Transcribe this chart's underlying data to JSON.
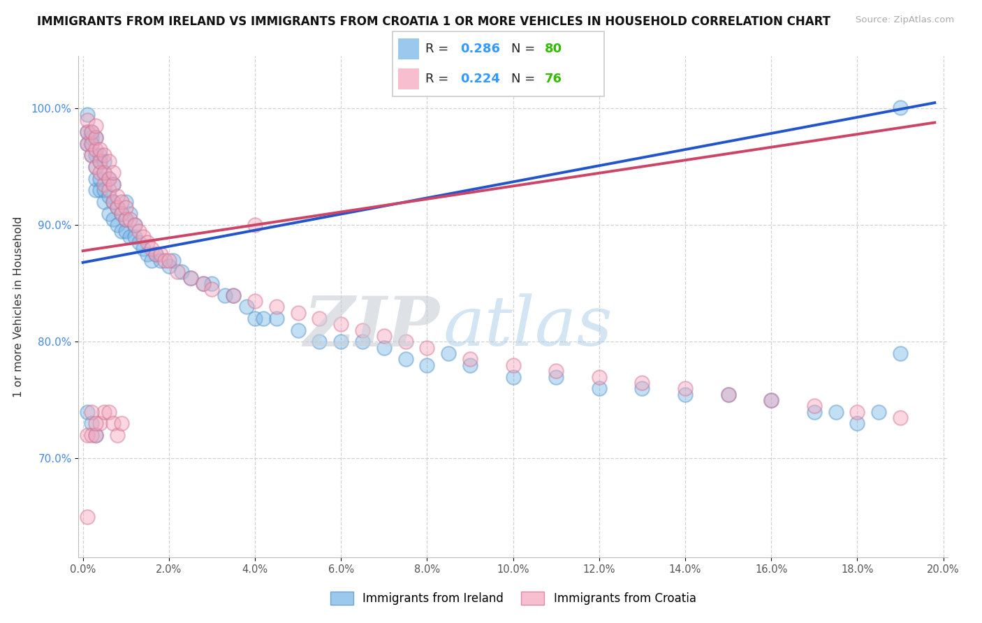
{
  "title": "IMMIGRANTS FROM IRELAND VS IMMIGRANTS FROM CROATIA 1 OR MORE VEHICLES IN HOUSEHOLD CORRELATION CHART",
  "source": "Source: ZipAtlas.com",
  "ylabel": "1 or more Vehicles in Household",
  "xlim": [
    -0.001,
    0.201
  ],
  "ylim": [
    0.615,
    1.045
  ],
  "xticks": [
    0.0,
    0.02,
    0.04,
    0.06,
    0.08,
    0.1,
    0.12,
    0.14,
    0.16,
    0.18,
    0.2
  ],
  "xticklabels": [
    "0.0%",
    "2.0%",
    "4.0%",
    "6.0%",
    "8.0%",
    "10.0%",
    "12.0%",
    "14.0%",
    "16.0%",
    "18.0%",
    "20.0%"
  ],
  "yticks": [
    0.7,
    0.8,
    0.9,
    1.0
  ],
  "yticklabels": [
    "70.0%",
    "80.0%",
    "90.0%",
    "100.0%"
  ],
  "ireland_color": "#7ab8e8",
  "ireland_edge": "#5090c8",
  "croatia_color": "#f4a8be",
  "croatia_edge": "#d07090",
  "ireland_R": 0.286,
  "ireland_N": 80,
  "croatia_R": 0.224,
  "croatia_N": 76,
  "ireland_line_color": "#2255cc",
  "croatia_line_color": "#cc4466",
  "ireland_line_x": [
    0.0,
    0.198
  ],
  "ireland_line_y": [
    0.868,
    1.005
  ],
  "croatia_line_x": [
    0.0,
    0.198
  ],
  "croatia_line_y": [
    0.878,
    0.988
  ],
  "watermark_zip": "ZIP",
  "watermark_atlas": "atlas",
  "legend_R_color": "#3399ff",
  "legend_N_color": "#33bb00",
  "background_color": "#ffffff",
  "grid_color": "#cccccc",
  "ireland_x": [
    0.001,
    0.001,
    0.001,
    0.002,
    0.002,
    0.002,
    0.002,
    0.003,
    0.003,
    0.003,
    0.003,
    0.003,
    0.004,
    0.004,
    0.004,
    0.004,
    0.005,
    0.005,
    0.005,
    0.005,
    0.006,
    0.006,
    0.006,
    0.007,
    0.007,
    0.007,
    0.008,
    0.008,
    0.009,
    0.009,
    0.01,
    0.01,
    0.01,
    0.011,
    0.011,
    0.012,
    0.012,
    0.013,
    0.014,
    0.015,
    0.016,
    0.017,
    0.018,
    0.02,
    0.021,
    0.023,
    0.025,
    0.028,
    0.03,
    0.033,
    0.035,
    0.038,
    0.04,
    0.042,
    0.045,
    0.05,
    0.055,
    0.06,
    0.065,
    0.07,
    0.075,
    0.08,
    0.085,
    0.09,
    0.1,
    0.11,
    0.12,
    0.13,
    0.14,
    0.15,
    0.16,
    0.17,
    0.175,
    0.18,
    0.185,
    0.19,
    0.001,
    0.002,
    0.003,
    0.19
  ],
  "ireland_y": [
    0.97,
    0.98,
    0.995,
    0.96,
    0.97,
    0.975,
    0.98,
    0.93,
    0.94,
    0.95,
    0.96,
    0.975,
    0.93,
    0.94,
    0.955,
    0.96,
    0.92,
    0.93,
    0.945,
    0.955,
    0.91,
    0.925,
    0.94,
    0.905,
    0.92,
    0.935,
    0.9,
    0.915,
    0.895,
    0.91,
    0.895,
    0.905,
    0.92,
    0.89,
    0.91,
    0.89,
    0.9,
    0.885,
    0.88,
    0.875,
    0.87,
    0.875,
    0.87,
    0.865,
    0.87,
    0.86,
    0.855,
    0.85,
    0.85,
    0.84,
    0.84,
    0.83,
    0.82,
    0.82,
    0.82,
    0.81,
    0.8,
    0.8,
    0.8,
    0.795,
    0.785,
    0.78,
    0.79,
    0.78,
    0.77,
    0.77,
    0.76,
    0.76,
    0.755,
    0.755,
    0.75,
    0.74,
    0.74,
    0.73,
    0.74,
    1.001,
    0.74,
    0.73,
    0.72,
    0.79
  ],
  "croatia_x": [
    0.001,
    0.001,
    0.001,
    0.002,
    0.002,
    0.002,
    0.003,
    0.003,
    0.003,
    0.003,
    0.004,
    0.004,
    0.004,
    0.005,
    0.005,
    0.005,
    0.006,
    0.006,
    0.006,
    0.007,
    0.007,
    0.007,
    0.008,
    0.008,
    0.009,
    0.009,
    0.01,
    0.01,
    0.011,
    0.012,
    0.013,
    0.014,
    0.015,
    0.016,
    0.017,
    0.018,
    0.019,
    0.02,
    0.022,
    0.025,
    0.028,
    0.03,
    0.035,
    0.04,
    0.045,
    0.05,
    0.055,
    0.06,
    0.065,
    0.07,
    0.075,
    0.08,
    0.09,
    0.1,
    0.11,
    0.12,
    0.13,
    0.14,
    0.15,
    0.16,
    0.17,
    0.18,
    0.19,
    0.001,
    0.002,
    0.003,
    0.004,
    0.005,
    0.006,
    0.007,
    0.008,
    0.009,
    0.001,
    0.002,
    0.003,
    0.04
  ],
  "croatia_y": [
    0.97,
    0.98,
    0.99,
    0.96,
    0.97,
    0.98,
    0.95,
    0.965,
    0.975,
    0.985,
    0.945,
    0.955,
    0.965,
    0.935,
    0.945,
    0.96,
    0.93,
    0.94,
    0.955,
    0.92,
    0.935,
    0.945,
    0.915,
    0.925,
    0.91,
    0.92,
    0.905,
    0.915,
    0.905,
    0.9,
    0.895,
    0.89,
    0.885,
    0.88,
    0.875,
    0.875,
    0.87,
    0.87,
    0.86,
    0.855,
    0.85,
    0.845,
    0.84,
    0.835,
    0.83,
    0.825,
    0.82,
    0.815,
    0.81,
    0.805,
    0.8,
    0.795,
    0.785,
    0.78,
    0.775,
    0.77,
    0.765,
    0.76,
    0.755,
    0.75,
    0.745,
    0.74,
    0.735,
    0.72,
    0.72,
    0.72,
    0.73,
    0.74,
    0.74,
    0.73,
    0.72,
    0.73,
    0.65,
    0.74,
    0.73,
    0.9
  ]
}
